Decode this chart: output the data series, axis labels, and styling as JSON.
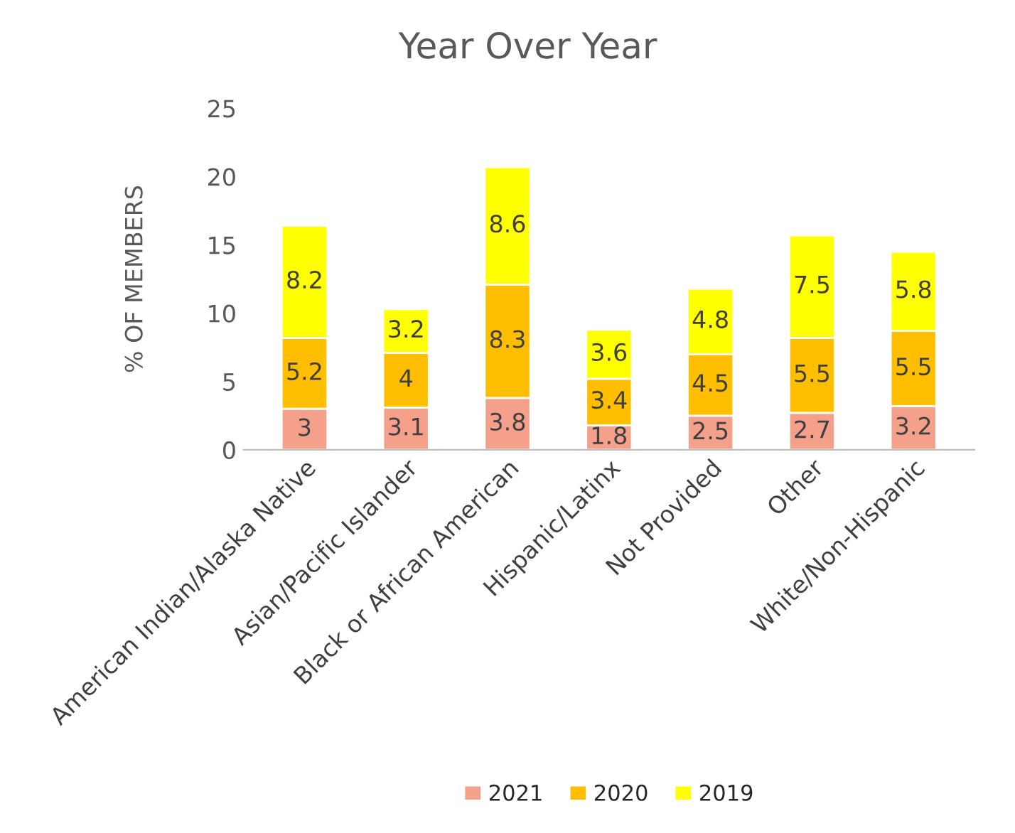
{
  "chart_data": {
    "type": "bar",
    "title": "Year Over Year",
    "ylabel": "% OF MEMBERS",
    "categories": [
      "American Indian/Alaska Native",
      "Asian/Pacific Islander",
      "Black or African American",
      "Hispanic/Latinx",
      "Not Provided",
      "Other",
      "White/Non-Hispanic"
    ],
    "series": [
      {
        "name": "2021",
        "color": "#f4a08a",
        "values": [
          3,
          3.1,
          3.8,
          1.8,
          2.5,
          2.7,
          3.2
        ]
      },
      {
        "name": "2020",
        "color": "#ffbf00",
        "values": [
          5.2,
          4,
          8.3,
          3.4,
          4.5,
          5.5,
          5.5
        ]
      },
      {
        "name": "2019",
        "color": "#ffff00",
        "values": [
          8.2,
          3.2,
          8.6,
          3.6,
          4.8,
          7.5,
          5.8
        ]
      }
    ],
    "stacked": true,
    "ylim": [
      0,
      25
    ],
    "yticks": [
      0,
      5,
      10,
      15,
      20,
      25
    ],
    "grid": false,
    "legend": "bottom",
    "data_labels": true
  }
}
